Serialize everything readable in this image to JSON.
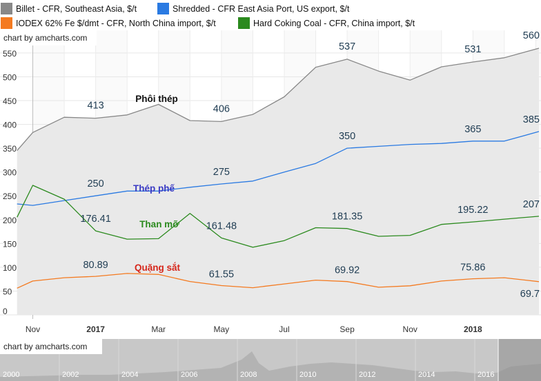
{
  "legend": [
    {
      "label": "Billet - CFR, Southeast Asia, $/t",
      "color": "#888888"
    },
    {
      "label": "Shredded - CFR East Asia Port, US export, $/t",
      "color": "#2a7ae2"
    },
    {
      "label": "IODEX 62% Fe $/dmt - CFR, North China import, $/t",
      "color": "#f47a20"
    },
    {
      "label": "Hard Coking Coal - CFR, China import, $/t",
      "color": "#2b8a1e"
    }
  ],
  "credit": "chart by amcharts.com",
  "nav": {
    "credit": "chart by amcharts.com",
    "years": [
      "2000",
      "2002",
      "2004",
      "2006",
      "2008",
      "2010",
      "2012",
      "2014",
      "2016"
    ]
  },
  "chart_data": {
    "type": "line",
    "ylim": [
      0,
      580
    ],
    "yticks": [
      "0",
      "50",
      "100",
      "150",
      "200",
      "250",
      "300",
      "350",
      "400",
      "450",
      "500",
      "550"
    ],
    "x_labels": [
      {
        "text": "Nov",
        "bold": false,
        "idx": 1
      },
      {
        "text": "2017",
        "bold": true,
        "idx": 3
      },
      {
        "text": "Mar",
        "bold": false,
        "idx": 5
      },
      {
        "text": "May",
        "bold": false,
        "idx": 7
      },
      {
        "text": "Jul",
        "bold": false,
        "idx": 9
      },
      {
        "text": "Sep",
        "bold": false,
        "idx": 11
      },
      {
        "text": "Nov",
        "bold": false,
        "idx": 13
      },
      {
        "text": "2018",
        "bold": true,
        "idx": 15
      }
    ],
    "x_period_start": 0.5,
    "x_period_end": 17.1,
    "series": [
      {
        "key": "billet",
        "color": "#888888",
        "x": [
          0.5,
          1,
          2,
          3,
          4,
          5,
          6,
          7,
          8,
          9,
          10,
          11,
          12,
          13,
          14,
          15,
          16,
          17.1
        ],
        "values": [
          345,
          383,
          415,
          413,
          420,
          442,
          408,
          406,
          421,
          458,
          520,
          537,
          512,
          493,
          521,
          531,
          540,
          560
        ]
      },
      {
        "key": "shredded",
        "color": "#2a7ae2",
        "x": [
          0.5,
          1,
          2,
          3,
          4,
          5,
          6,
          7,
          8,
          9,
          10,
          11,
          12,
          13,
          14,
          15,
          16,
          17.1
        ],
        "values": [
          233,
          230,
          240,
          250,
          260,
          260,
          268,
          275,
          281,
          300,
          318,
          350,
          354,
          358,
          360,
          365,
          365,
          385
        ]
      },
      {
        "key": "coal",
        "color": "#2b8a1e",
        "x": [
          0.5,
          1,
          2,
          3,
          4,
          5,
          6,
          7,
          8,
          9,
          10,
          11,
          12,
          13,
          14,
          15,
          16,
          17.1
        ],
        "values": [
          205,
          272,
          243,
          176.41,
          159,
          160,
          213,
          161.48,
          142,
          156,
          183,
          181.35,
          165,
          167,
          190,
          195.22,
          201,
          207
        ]
      },
      {
        "key": "iron",
        "color": "#f47a20",
        "x": [
          0.5,
          1,
          2,
          3,
          4,
          5,
          6,
          7,
          8,
          9,
          10,
          11,
          12,
          13,
          14,
          15,
          16,
          17.1
        ],
        "values": [
          56,
          71,
          78,
          80.89,
          87,
          85,
          70,
          61.55,
          57,
          65,
          73,
          69.92,
          58,
          61,
          71,
          75.86,
          78,
          69.7
        ]
      }
    ],
    "data_labels": [
      {
        "text": "413",
        "series": "billet",
        "idx": 3
      },
      {
        "text": "406",
        "series": "billet",
        "idx": 7
      },
      {
        "text": "537",
        "series": "billet",
        "idx": 11
      },
      {
        "text": "531",
        "series": "billet",
        "idx": 15
      },
      {
        "text": "560",
        "series": "billet",
        "idx": 17
      },
      {
        "text": "250",
        "series": "shredded",
        "idx": 3
      },
      {
        "text": "275",
        "series": "shredded",
        "idx": 7
      },
      {
        "text": "350",
        "series": "shredded",
        "idx": 11
      },
      {
        "text": "365",
        "series": "shredded",
        "idx": 15
      },
      {
        "text": "385",
        "series": "shredded",
        "idx": 17
      },
      {
        "text": "176.41",
        "series": "coal",
        "idx": 3
      },
      {
        "text": "161.48",
        "series": "coal",
        "idx": 7
      },
      {
        "text": "181.35",
        "series": "coal",
        "idx": 11
      },
      {
        "text": "195.22",
        "series": "coal",
        "idx": 15
      },
      {
        "text": "207",
        "series": "coal",
        "idx": 17
      },
      {
        "text": "80.89",
        "series": "iron",
        "idx": 3
      },
      {
        "text": "61.55",
        "series": "iron",
        "idx": 7
      },
      {
        "text": "69.92",
        "series": "iron",
        "idx": 11
      },
      {
        "text": "75.86",
        "series": "iron",
        "idx": 15
      },
      {
        "text": "69.7",
        "series": "iron",
        "idx": 17
      }
    ],
    "annotations": [
      {
        "text": "Phôi thép",
        "color": "#111111",
        "series": "billet"
      },
      {
        "text": "Thép phế",
        "color": "#3b3bc4",
        "series": "shredded"
      },
      {
        "text": "Than mỡ",
        "color": "#2b8a1e",
        "series": "coal"
      },
      {
        "text": "Quặng sắt",
        "color": "#d6271b",
        "series": "iron"
      }
    ]
  }
}
